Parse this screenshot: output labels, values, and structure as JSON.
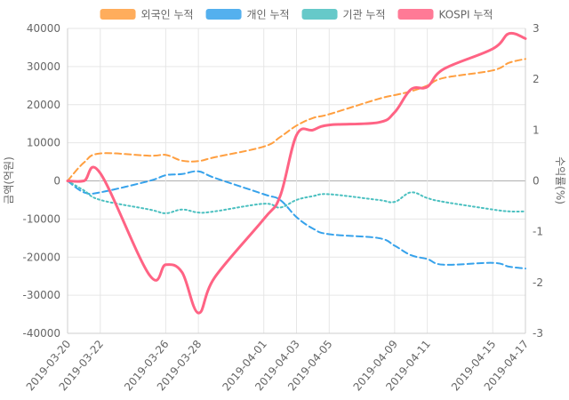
{
  "chart_data": {
    "type": "line",
    "legend_position": "top",
    "grid": true,
    "ylabel": "금액(억원)",
    "y2label": "수익률(%)",
    "ylim": [
      -40000,
      40000
    ],
    "y2lim": [
      -3,
      3
    ],
    "yticks": [
      "40000",
      "30000",
      "20000",
      "10000",
      "0",
      "-10000",
      "-20000",
      "-30000",
      "-40000"
    ],
    "y2ticks": [
      "3",
      "2",
      "1",
      "0",
      "-1",
      "-2",
      "-3"
    ],
    "x_tick_labels": [
      "2019-03-20",
      "2019-03-22",
      "2019-03-26",
      "2019-03-28",
      "2019-04-01",
      "2019-04-03",
      "2019-04-05",
      "2019-04-09",
      "2019-04-11",
      "2019-04-15",
      "2019-04-17"
    ],
    "x": [
      "2019-03-20",
      "2019-03-21",
      "2019-03-22",
      "2019-03-25",
      "2019-03-26",
      "2019-03-27",
      "2019-03-28",
      "2019-03-29",
      "2019-04-01",
      "2019-04-02",
      "2019-04-03",
      "2019-04-04",
      "2019-04-05",
      "2019-04-08",
      "2019-04-09",
      "2019-04-10",
      "2019-04-11",
      "2019-04-12",
      "2019-04-15",
      "2019-04-16",
      "2019-04-17"
    ],
    "series": [
      {
        "name": "외국인 누적",
        "axis": "left",
        "color": "#ff9f40",
        "style": "dashed",
        "values": [
          0,
          4800,
          7200,
          6600,
          6800,
          5300,
          5200,
          6200,
          9000,
          11500,
          14500,
          16500,
          17500,
          21500,
          22500,
          23500,
          25000,
          27000,
          29000,
          31000,
          32000
        ]
      },
      {
        "name": "개인 누적",
        "axis": "left",
        "color": "#36a2eb",
        "style": "dashed",
        "values": [
          0,
          -3000,
          -3000,
          0,
          1500,
          1800,
          2500,
          800,
          -3500,
          -5000,
          -9500,
          -12500,
          -14000,
          -15000,
          -17000,
          -19500,
          -20500,
          -22000,
          -21500,
          -22500,
          -23000
        ]
      },
      {
        "name": "기관 누적",
        "axis": "left",
        "color": "#4bc0c0",
        "style": "dotted",
        "values": [
          0,
          -2500,
          -5000,
          -7500,
          -8500,
          -7500,
          -8300,
          -8000,
          -6000,
          -7000,
          -5000,
          -4000,
          -3500,
          -5000,
          -5500,
          -3000,
          -4500,
          -5500,
          -7500,
          -8000,
          -8000
        ]
      },
      {
        "name": "KOSPI 누적",
        "axis": "right",
        "color": "#ff6384",
        "style": "solid",
        "values": [
          0,
          0,
          0.15,
          -1.85,
          -1.65,
          -1.8,
          -2.6,
          -1.9,
          -0.75,
          -0.3,
          0.9,
          1.0,
          1.1,
          1.15,
          1.35,
          1.8,
          1.85,
          2.2,
          2.6,
          2.9,
          2.8
        ]
      }
    ]
  }
}
